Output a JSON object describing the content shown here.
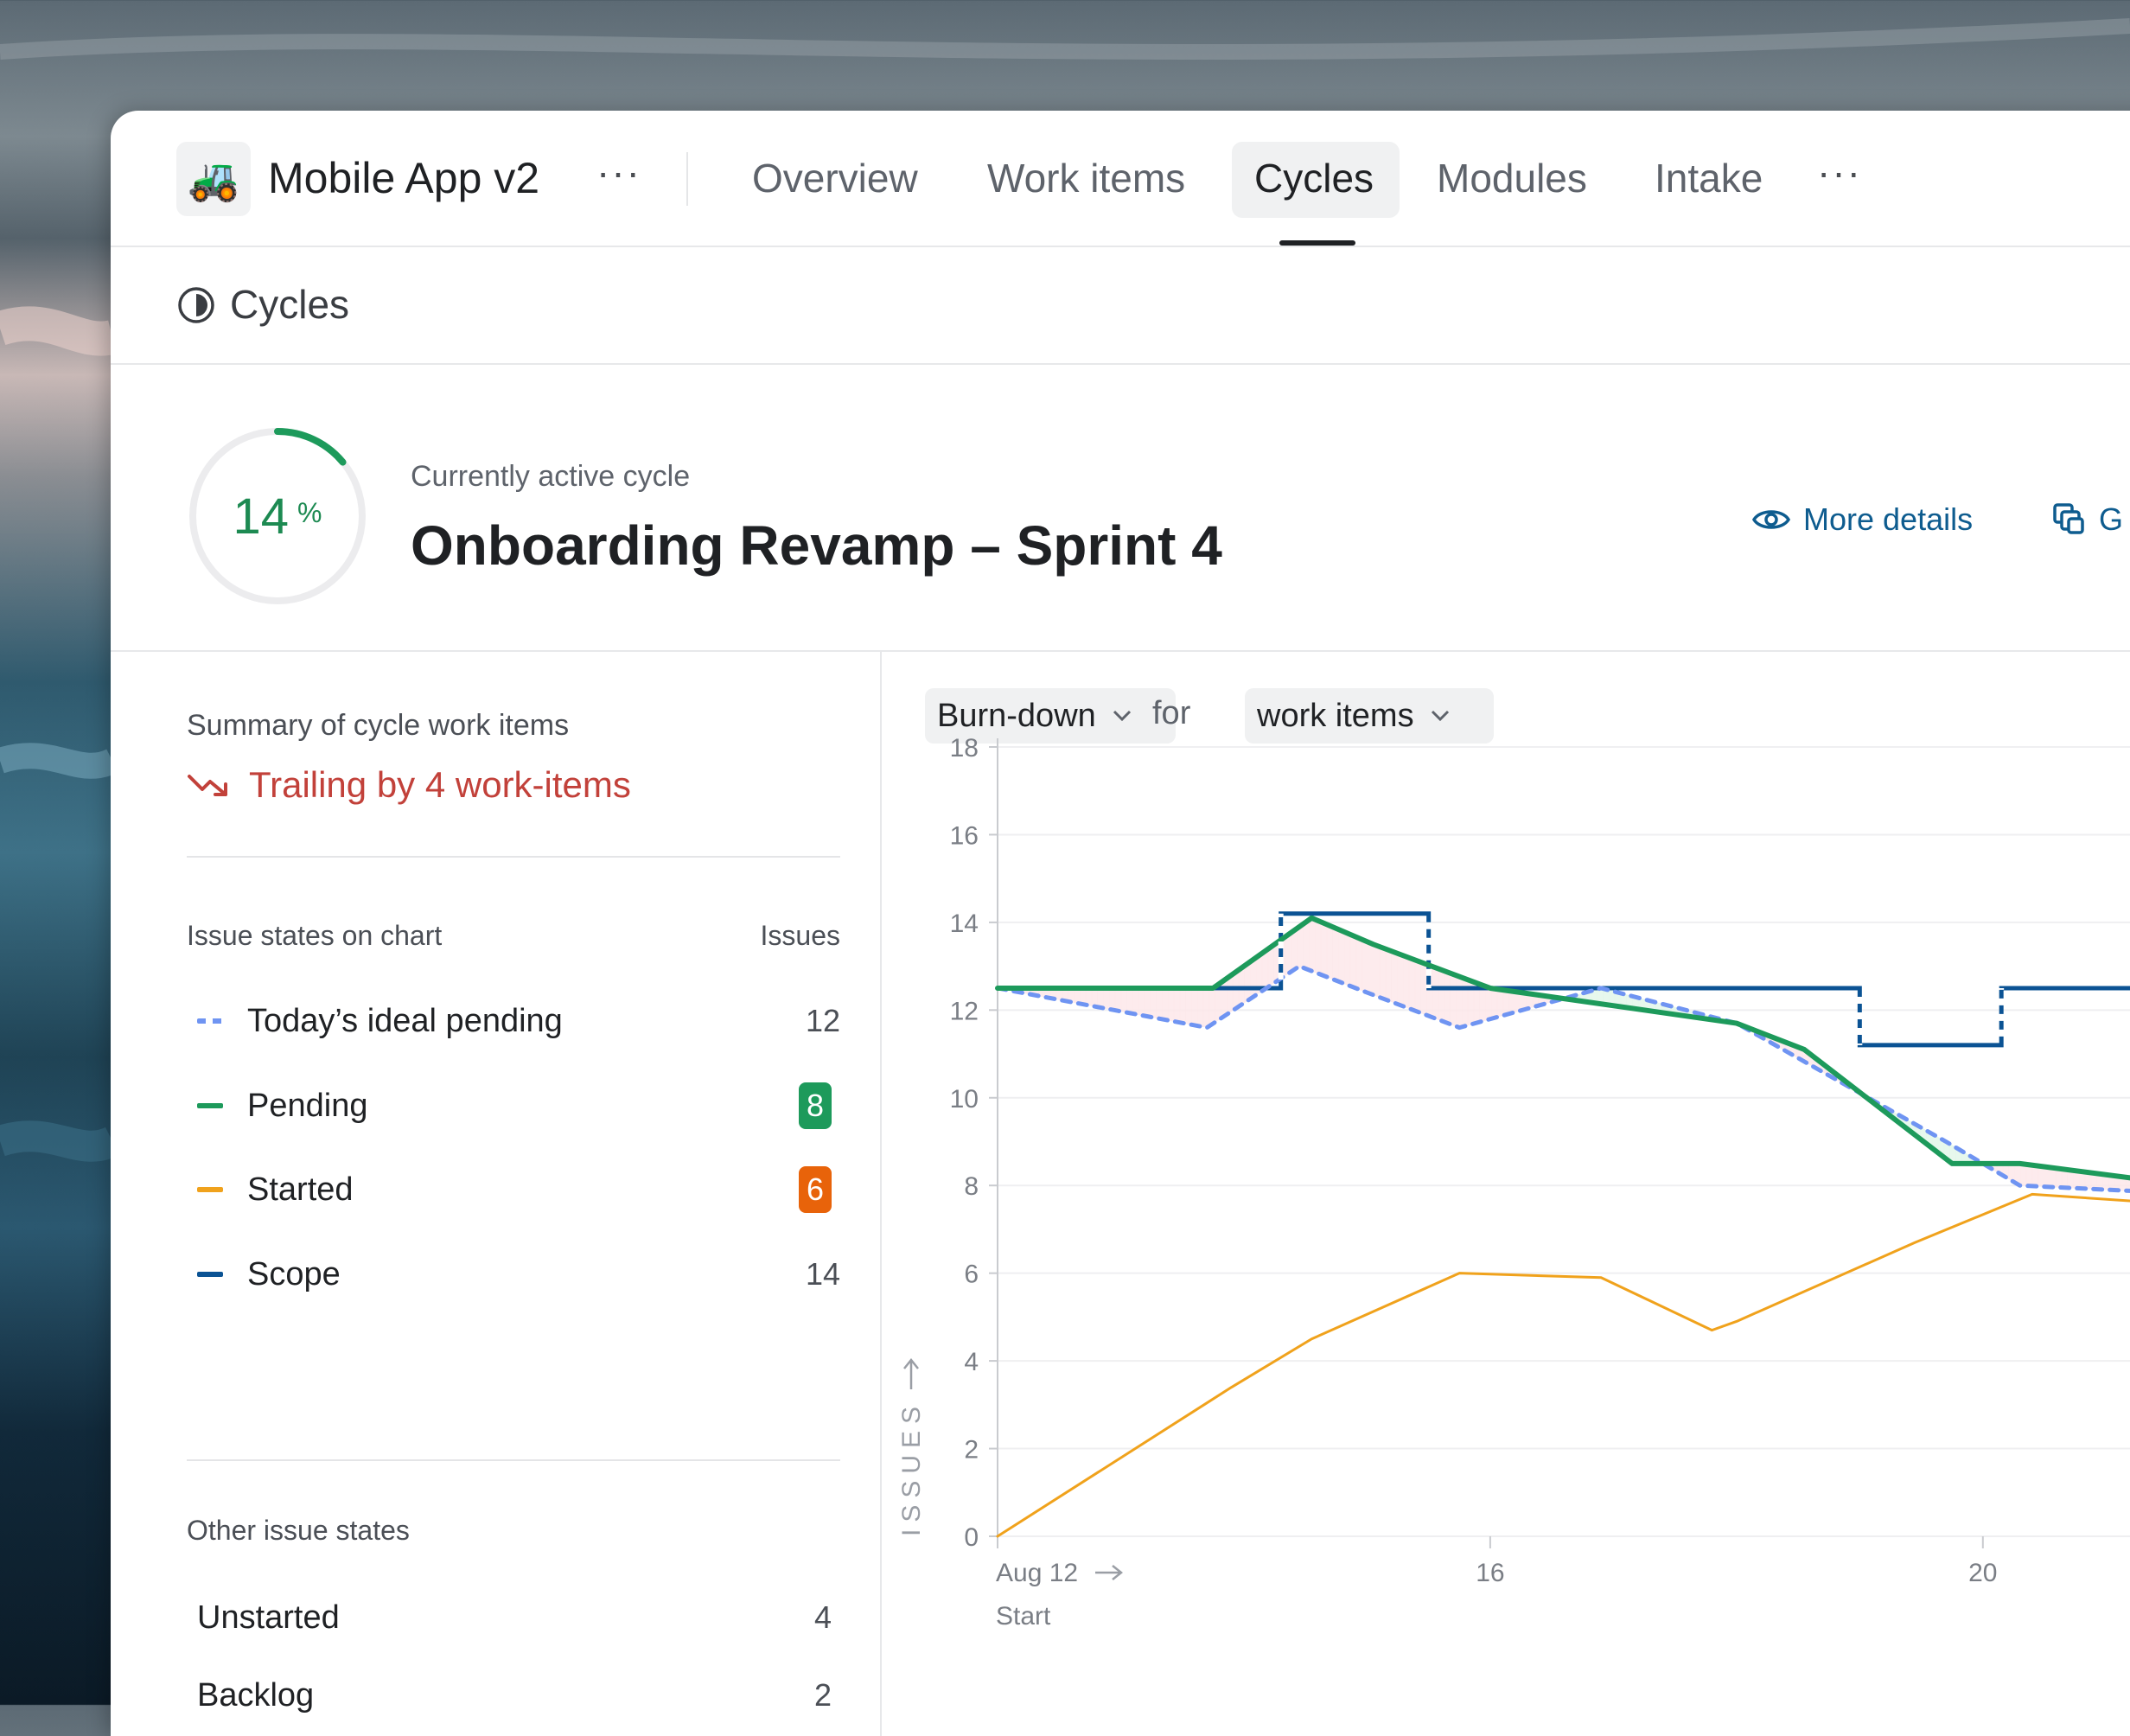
{
  "project": {
    "icon": "🚜",
    "name": "Mobile App v2",
    "more": "···"
  },
  "nav": {
    "tabs": [
      {
        "label": "Overview",
        "active": false
      },
      {
        "label": "Work items",
        "active": false
      },
      {
        "label": "Cycles",
        "active": true
      },
      {
        "label": "Modules",
        "active": false
      },
      {
        "label": "Intake",
        "active": false
      }
    ],
    "more": "···"
  },
  "breadcrumb": {
    "icon": "cycle-icon",
    "title": "Cycles"
  },
  "active_cycle": {
    "progress_percent": 14,
    "progress_value": "14",
    "progress_unit": "%",
    "label": "Currently active cycle",
    "title": "Onboarding Revamp – Sprint 4",
    "more_details": "More details",
    "secondary_action": "G"
  },
  "summary": {
    "heading": "Summary of cycle work items",
    "trend_text": "Trailing by 4 work-items",
    "states_heading": "Issue states on chart",
    "issues_heading": "Issues",
    "states": [
      {
        "label": "Today’s ideal pending",
        "count": "12",
        "color": "#6f94f2",
        "style": "dashed"
      },
      {
        "label": "Pending",
        "count": "8",
        "color": "#1d9a5b",
        "style": "badge"
      },
      {
        "label": "Started",
        "count": "6",
        "color": "#f0a21c",
        "badge_color": "#e8630a",
        "style": "badge"
      },
      {
        "label": "Scope",
        "count": "14",
        "color": "#0b5394",
        "style": "plain"
      }
    ],
    "other_heading": "Other issue states",
    "other_states": [
      {
        "label": "Unstarted",
        "count": "4"
      },
      {
        "label": "Backlog",
        "count": "2"
      }
    ]
  },
  "chart_controls": {
    "chart_type": "Burn-down",
    "for_text": "for",
    "entity": "work items"
  },
  "chart_data": {
    "type": "line",
    "y_axis_label": "ISSUES",
    "ylim": [
      0,
      18
    ],
    "y_ticks": [
      0,
      2,
      4,
      6,
      8,
      10,
      12,
      14,
      16,
      18
    ],
    "xlim": [
      12,
      22.5
    ],
    "x_ticks": [
      {
        "value": 12,
        "label": "Aug 12",
        "sublabel": "Start"
      },
      {
        "value": 16,
        "label": "16"
      },
      {
        "value": 20,
        "label": "20"
      }
    ],
    "grid": true,
    "series": [
      {
        "name": "Scope",
        "color": "#0b5394",
        "style": "step",
        "x": [
          12,
          14.3,
          14.3,
          15.5,
          15.5,
          19.0,
          19.0,
          20.15,
          20.15,
          22.5
        ],
        "y": [
          12.5,
          12.5,
          14.2,
          14.2,
          12.5,
          12.5,
          11.2,
          11.2,
          12.5,
          12.5
        ]
      },
      {
        "name": "Pending",
        "color": "#1d9a5b",
        "x": [
          12,
          13.75,
          14.55,
          15.05,
          16.0,
          18.0,
          18.55,
          19.75,
          20.3,
          22.5
        ],
        "y": [
          12.5,
          12.5,
          14.1,
          13.5,
          12.5,
          11.7,
          11.1,
          8.5,
          8.5,
          7.7
        ]
      },
      {
        "name": "Today’s ideal pending",
        "color": "#6f94f2",
        "style": "dashed",
        "x": [
          12,
          13.7,
          14.45,
          15.0,
          15.75,
          16.9,
          18.0,
          19.7,
          20.3,
          22.5
        ],
        "y": [
          12.5,
          11.6,
          13.0,
          12.4,
          11.6,
          12.5,
          11.7,
          9.0,
          8.0,
          7.7
        ]
      },
      {
        "name": "Started",
        "color": "#f0a21c",
        "x": [
          12,
          13.9,
          14.55,
          15.75,
          16.9,
          17.8,
          18.0,
          19.45,
          20.4,
          22.5
        ],
        "y": [
          0,
          3.4,
          4.5,
          6.0,
          5.9,
          4.7,
          4.9,
          6.7,
          7.8,
          7.4
        ]
      }
    ]
  }
}
